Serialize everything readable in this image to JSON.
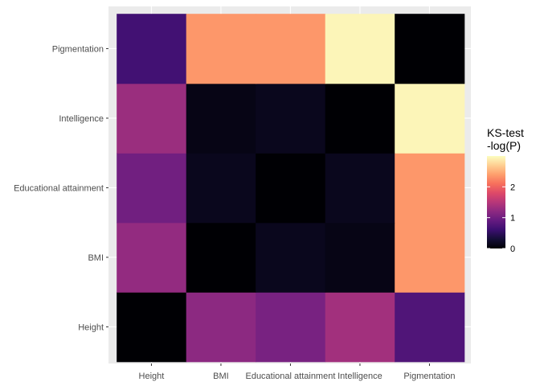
{
  "chart_data": {
    "type": "heatmap",
    "title": "",
    "xlabel": "",
    "ylabel": "",
    "x_categories": [
      "Height",
      "BMI",
      "Educational attainment",
      "Intelligence",
      "Pigmentation"
    ],
    "y_categories": [
      "Height",
      "BMI",
      "Educational attainment",
      "Intelligence",
      "Pigmentation"
    ],
    "values": [
      [
        0.0,
        1.2,
        1.05,
        1.35,
        0.75
      ],
      [
        1.25,
        0.0,
        0.15,
        0.1,
        2.35
      ],
      [
        1.0,
        0.15,
        0.0,
        0.15,
        2.35
      ],
      [
        1.3,
        0.1,
        0.15,
        0.0,
        2.95
      ],
      [
        0.65,
        2.35,
        2.35,
        2.95,
        0.0
      ]
    ],
    "value_note": "values[row][col]: row indexes y_categories (bottom to top), col indexes x_categories; estimated from colour",
    "colorscale": "magma",
    "color_range": [
      0,
      3
    ],
    "grid": true,
    "legend": {
      "title": "KS-test\n-log(P)",
      "title_lines": [
        "KS-test",
        "-log(P)"
      ],
      "ticks": [
        0,
        1,
        2
      ],
      "tick_labels": [
        "0",
        "1",
        "2"
      ],
      "placement": "right"
    },
    "panel_background": "#ebebeb",
    "gridline_color": "#ffffff"
  }
}
